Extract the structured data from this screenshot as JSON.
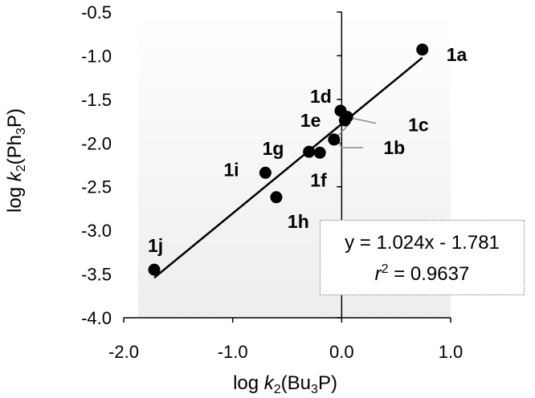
{
  "chart_data": {
    "type": "scatter",
    "xlabel": {
      "prefix": "log ",
      "var": "k",
      "sub": "2",
      "paren_open": "(Bu",
      "sub2": "3",
      "paren_close": "P)"
    },
    "ylabel": {
      "prefix": "log ",
      "var": "k",
      "sub": "2",
      "paren_open": "(Ph",
      "sub2": "3",
      "paren_close": "P)"
    },
    "xlim": [
      -2.0,
      1.0
    ],
    "ylim": [
      -4.0,
      -0.5
    ],
    "x_ticks": [
      "-2.0",
      "-1.0",
      "0.0",
      "1.0"
    ],
    "x_tick_values": [
      -2.0,
      -1.0,
      0.0,
      1.0
    ],
    "y_ticks": [
      "-0.5",
      "-1.0",
      "-1.5",
      "-2.0",
      "-2.5",
      "-3.0",
      "-3.5",
      "-4.0"
    ],
    "y_tick_values": [
      -0.5,
      -1.0,
      -1.5,
      -2.0,
      -2.5,
      -3.0,
      -3.5,
      -4.0
    ],
    "points": [
      {
        "label": "1a",
        "x": 0.74,
        "y": -0.93
      },
      {
        "label": "1b",
        "x": 0.03,
        "y": -1.74
      },
      {
        "label": "1c",
        "x": 0.05,
        "y": -1.7
      },
      {
        "label": "1d",
        "x": -0.01,
        "y": -1.63
      },
      {
        "label": "1e",
        "x": -0.07,
        "y": -1.96
      },
      {
        "label": "1f",
        "x": -0.2,
        "y": -2.11
      },
      {
        "label": "1g",
        "x": -0.3,
        "y": -2.1
      },
      {
        "label": "1h",
        "x": -0.6,
        "y": -2.62
      },
      {
        "label": "1i",
        "x": -0.7,
        "y": -2.34
      },
      {
        "label": "1j",
        "x": -1.72,
        "y": -3.45
      }
    ],
    "fit": {
      "slope": 1.024,
      "intercept": -1.781,
      "x_range": [
        -1.72,
        0.74
      ],
      "equation": "y = 1.024x - 1.781",
      "r2_symbol": "r",
      "r2_exp": "2",
      "r2_value": " = 0.9637"
    },
    "grid": false
  }
}
